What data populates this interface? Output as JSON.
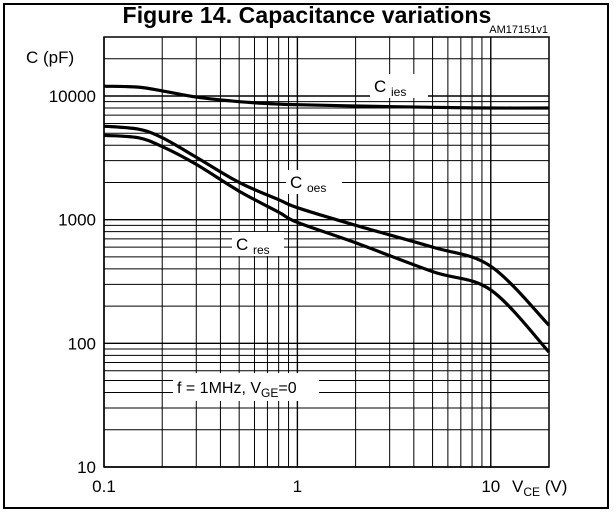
{
  "chart_data": {
    "type": "line",
    "title": "Figure 14. Capacitance variations",
    "figure_code": "AM17151v1",
    "ylabel": "C (pF)",
    "xlabel_main": "V",
    "xlabel_sub": "CE",
    "xlabel_unit": "(V)",
    "x_scale": "log",
    "y_scale": "log",
    "xlim": [
      0.1,
      20
    ],
    "ylim": [
      10,
      30000
    ],
    "grid": true,
    "x_tick_labels": [
      "0.1",
      "1",
      "10"
    ],
    "y_tick_labels": [
      "10",
      "100",
      "1000",
      "10000"
    ],
    "annotation": {
      "prefix": "f = 1MHz, V",
      "sub": "GE",
      "suffix": "=0"
    },
    "series": [
      {
        "name": "C",
        "name_sub": "ies",
        "x": [
          0.1,
          0.15,
          0.2,
          0.3,
          0.5,
          0.8,
          1,
          2,
          5,
          10,
          20
        ],
        "y": [
          12000,
          11800,
          11000,
          9800,
          9000,
          8600,
          8500,
          8300,
          8100,
          8000,
          8000
        ]
      },
      {
        "name": "C",
        "name_sub": "oes",
        "x": [
          0.1,
          0.15,
          0.2,
          0.3,
          0.5,
          0.8,
          1,
          2,
          5,
          10,
          20
        ],
        "y": [
          5700,
          5400,
          4600,
          3200,
          2000,
          1450,
          1250,
          900,
          600,
          420,
          140
        ]
      },
      {
        "name": "C",
        "name_sub": "res",
        "x": [
          0.1,
          0.15,
          0.2,
          0.3,
          0.5,
          0.8,
          1,
          2,
          5,
          10,
          20
        ],
        "y": [
          4800,
          4600,
          3900,
          2800,
          1700,
          1150,
          950,
          650,
          380,
          270,
          85
        ]
      }
    ]
  }
}
